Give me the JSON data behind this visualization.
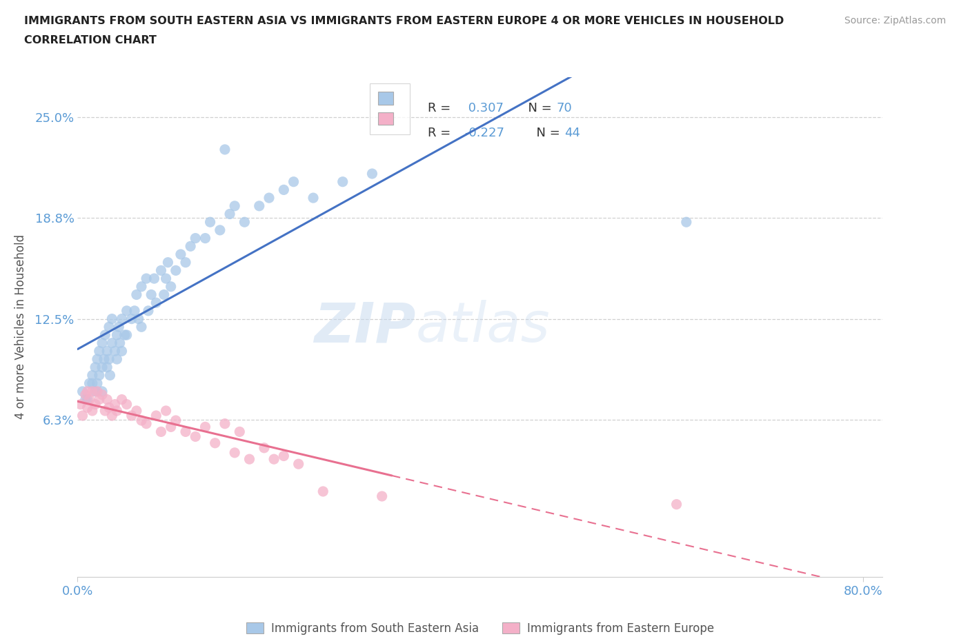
{
  "title_line1": "IMMIGRANTS FROM SOUTH EASTERN ASIA VS IMMIGRANTS FROM EASTERN EUROPE 4 OR MORE VEHICLES IN HOUSEHOLD",
  "title_line2": "CORRELATION CHART",
  "source": "Source: ZipAtlas.com",
  "ylabel": "4 or more Vehicles in Household",
  "xlim": [
    0.0,
    0.82
  ],
  "ylim": [
    -0.035,
    0.275
  ],
  "yticks": [
    0.0625,
    0.125,
    0.1875,
    0.25
  ],
  "yticklabels": [
    "6.3%",
    "12.5%",
    "18.8%",
    "25.0%"
  ],
  "blue_R": 0.307,
  "blue_N": 70,
  "pink_R": -0.227,
  "pink_N": 44,
  "blue_color": "#a8c8e8",
  "pink_color": "#f4b0c8",
  "legend_label_blue": "Immigrants from South Eastern Asia",
  "legend_label_pink": "Immigrants from Eastern Europe",
  "watermark_zip": "ZIP",
  "watermark_atlas": "atlas",
  "blue_line_color": "#4472c4",
  "pink_line_color": "#e87090",
  "blue_scatter_x": [
    0.005,
    0.008,
    0.01,
    0.012,
    0.015,
    0.015,
    0.018,
    0.018,
    0.02,
    0.02,
    0.022,
    0.022,
    0.025,
    0.025,
    0.025,
    0.027,
    0.028,
    0.03,
    0.03,
    0.032,
    0.032,
    0.033,
    0.035,
    0.035,
    0.038,
    0.04,
    0.04,
    0.042,
    0.043,
    0.045,
    0.045,
    0.048,
    0.05,
    0.05,
    0.055,
    0.058,
    0.06,
    0.062,
    0.065,
    0.065,
    0.07,
    0.072,
    0.075,
    0.078,
    0.08,
    0.085,
    0.088,
    0.09,
    0.092,
    0.095,
    0.1,
    0.105,
    0.11,
    0.115,
    0.12,
    0.13,
    0.135,
    0.145,
    0.155,
    0.16,
    0.17,
    0.185,
    0.195,
    0.21,
    0.22,
    0.24,
    0.27,
    0.3,
    0.62,
    0.15
  ],
  "blue_scatter_y": [
    0.08,
    0.075,
    0.075,
    0.085,
    0.09,
    0.085,
    0.095,
    0.08,
    0.1,
    0.085,
    0.105,
    0.09,
    0.11,
    0.095,
    0.08,
    0.1,
    0.115,
    0.105,
    0.095,
    0.12,
    0.1,
    0.09,
    0.125,
    0.11,
    0.105,
    0.115,
    0.1,
    0.12,
    0.11,
    0.125,
    0.105,
    0.115,
    0.13,
    0.115,
    0.125,
    0.13,
    0.14,
    0.125,
    0.145,
    0.12,
    0.15,
    0.13,
    0.14,
    0.15,
    0.135,
    0.155,
    0.14,
    0.15,
    0.16,
    0.145,
    0.155,
    0.165,
    0.16,
    0.17,
    0.175,
    0.175,
    0.185,
    0.18,
    0.19,
    0.195,
    0.185,
    0.195,
    0.2,
    0.205,
    0.21,
    0.2,
    0.21,
    0.215,
    0.185,
    0.23
  ],
  "pink_scatter_x": [
    0.003,
    0.005,
    0.008,
    0.01,
    0.01,
    0.012,
    0.015,
    0.015,
    0.018,
    0.02,
    0.022,
    0.025,
    0.028,
    0.03,
    0.032,
    0.035,
    0.038,
    0.04,
    0.045,
    0.05,
    0.055,
    0.06,
    0.065,
    0.07,
    0.08,
    0.085,
    0.09,
    0.095,
    0.1,
    0.11,
    0.12,
    0.13,
    0.14,
    0.15,
    0.16,
    0.165,
    0.175,
    0.19,
    0.2,
    0.21,
    0.225,
    0.25,
    0.31,
    0.61
  ],
  "pink_scatter_y": [
    0.072,
    0.065,
    0.078,
    0.08,
    0.07,
    0.075,
    0.08,
    0.068,
    0.072,
    0.08,
    0.075,
    0.078,
    0.068,
    0.075,
    0.07,
    0.065,
    0.072,
    0.068,
    0.075,
    0.072,
    0.065,
    0.068,
    0.062,
    0.06,
    0.065,
    0.055,
    0.068,
    0.058,
    0.062,
    0.055,
    0.052,
    0.058,
    0.048,
    0.06,
    0.042,
    0.055,
    0.038,
    0.045,
    0.038,
    0.04,
    0.035,
    0.018,
    0.015,
    0.01
  ]
}
